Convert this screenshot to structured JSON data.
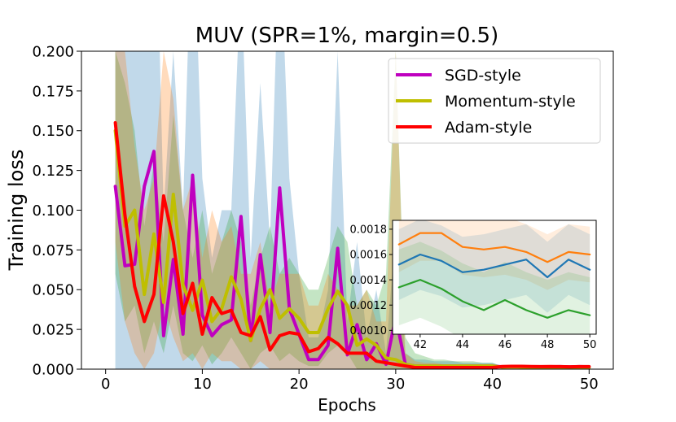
{
  "chart_data": [
    {
      "type": "line",
      "title": "MUV (SPR=1%, margin=0.5)",
      "xlabel": "Epochs",
      "ylabel": "Training loss",
      "xlim": [
        -2.5,
        52.5
      ],
      "ylim": [
        0.0,
        0.2
      ],
      "xticks": [
        0,
        10,
        20,
        30,
        40,
        50
      ],
      "xtick_labels": [
        "0",
        "10",
        "20",
        "30",
        "40",
        "50"
      ],
      "yticks": [
        0.0,
        0.025,
        0.05,
        0.075,
        0.1,
        0.125,
        0.15,
        0.175,
        0.2
      ],
      "ytick_labels": [
        "0.000",
        "0.025",
        "0.050",
        "0.075",
        "0.100",
        "0.125",
        "0.150",
        "0.175",
        "0.200"
      ],
      "grid": false,
      "legend_position": "top-right",
      "series": [
        {
          "name": "SGD-style",
          "color": "#bf00bf",
          "band_color": "#1f77b4",
          "x": [
            1,
            2,
            3,
            4,
            5,
            6,
            7,
            8,
            9,
            10,
            11,
            12,
            13,
            14,
            15,
            16,
            17,
            18,
            19,
            20,
            21,
            22,
            23,
            24,
            25,
            26,
            27,
            28,
            29,
            30,
            31,
            32,
            33,
            34,
            35,
            36,
            37,
            38,
            39,
            40,
            41,
            42,
            43,
            44,
            45,
            46,
            47,
            48,
            49,
            50
          ],
          "y": [
            0.115,
            0.065,
            0.066,
            0.115,
            0.137,
            0.021,
            0.069,
            0.022,
            0.122,
            0.034,
            0.021,
            0.028,
            0.031,
            0.096,
            0.018,
            0.072,
            0.023,
            0.114,
            0.038,
            0.022,
            0.006,
            0.006,
            0.015,
            0.076,
            0.009,
            0.028,
            0.006,
            0.016,
            0.003,
            0.033,
            0.003,
            0.002,
            0.002,
            0.002,
            0.002,
            0.002,
            0.002,
            0.002,
            0.002,
            0.002,
            0.0015,
            0.0016,
            0.0016,
            0.0015,
            0.0015,
            0.0015,
            0.0016,
            0.0014,
            0.0016,
            0.0015
          ],
          "lower": [
            0.0,
            0.0,
            0.0,
            0.0,
            0.0,
            0.0,
            0.0,
            0.0,
            0.0,
            0.0,
            0.0,
            0.0,
            0.0,
            0.0,
            0.0,
            0.0,
            0.0,
            0.0,
            0.0,
            0.0,
            0.0,
            0.0,
            0.0,
            0.0,
            0.0,
            0.0,
            0.0,
            0.0,
            0.0,
            0.0,
            0.0,
            0.0,
            0.0,
            0.0,
            0.0,
            0.0,
            0.0,
            0.0,
            0.0,
            0.0,
            0.001,
            0.0011,
            0.0011,
            0.001,
            0.001,
            0.001,
            0.0011,
            0.0009,
            0.0011,
            0.001
          ],
          "upper": [
            0.26,
            0.2,
            0.2,
            0.3,
            0.35,
            0.1,
            0.2,
            0.1,
            0.3,
            0.12,
            0.07,
            0.1,
            0.1,
            0.25,
            0.07,
            0.18,
            0.08,
            0.28,
            0.12,
            0.06,
            0.02,
            0.02,
            0.05,
            0.2,
            0.03,
            0.08,
            0.02,
            0.05,
            0.01,
            0.09,
            0.01,
            0.006,
            0.006,
            0.005,
            0.005,
            0.005,
            0.004,
            0.004,
            0.004,
            0.004,
            0.002,
            0.0021,
            0.0021,
            0.002,
            0.002,
            0.002,
            0.0021,
            0.0019,
            0.0021,
            0.002
          ]
        },
        {
          "name": "Momentum-style",
          "color": "#bfbf00",
          "band_color": "#2ca02c",
          "x": [
            1,
            2,
            3,
            4,
            5,
            6,
            7,
            8,
            9,
            10,
            11,
            12,
            13,
            14,
            15,
            16,
            17,
            18,
            19,
            20,
            21,
            22,
            23,
            24,
            25,
            26,
            27,
            28,
            29,
            30,
            31,
            32,
            33,
            34,
            35,
            36,
            37,
            38,
            39,
            40,
            41,
            42,
            43,
            44,
            45,
            46,
            47,
            48,
            49,
            50
          ],
          "y": [
            0.15,
            0.09,
            0.1,
            0.047,
            0.085,
            0.042,
            0.11,
            0.053,
            0.037,
            0.056,
            0.03,
            0.038,
            0.058,
            0.044,
            0.018,
            0.038,
            0.05,
            0.032,
            0.038,
            0.032,
            0.023,
            0.023,
            0.038,
            0.049,
            0.04,
            0.015,
            0.019,
            0.015,
            0.007,
            0.006,
            0.003,
            0.002,
            0.002,
            0.002,
            0.002,
            0.002,
            0.002,
            0.002,
            0.002,
            0.002,
            0.0013,
            0.0014,
            0.0013,
            0.0012,
            0.0012,
            0.0012,
            0.0012,
            0.0011,
            0.0012,
            0.0011
          ],
          "lower": [
            0.06,
            0.03,
            0.04,
            0.01,
            0.03,
            0.01,
            0.04,
            0.01,
            0.005,
            0.015,
            0.003,
            0.01,
            0.02,
            0.01,
            0.0,
            0.01,
            0.015,
            0.005,
            0.01,
            0.005,
            0.002,
            0.002,
            0.01,
            0.015,
            0.01,
            0.0,
            0.0,
            0.0,
            0.0,
            0.0,
            0.0,
            0.0,
            0.0,
            0.0,
            0.0,
            0.0,
            0.0,
            0.0,
            0.0,
            0.0,
            0.001,
            0.0011,
            0.001,
            0.0009,
            0.0009,
            0.001,
            0.0009,
            0.0008,
            0.0009,
            0.0008
          ],
          "upper": [
            0.2,
            0.18,
            0.15,
            0.09,
            0.13,
            0.08,
            0.16,
            0.1,
            0.07,
            0.1,
            0.06,
            0.08,
            0.1,
            0.08,
            0.04,
            0.07,
            0.09,
            0.06,
            0.07,
            0.06,
            0.05,
            0.05,
            0.07,
            0.09,
            0.08,
            0.04,
            0.05,
            0.04,
            0.06,
            0.2,
            0.02,
            0.01,
            0.008,
            0.006,
            0.006,
            0.005,
            0.005,
            0.005,
            0.004,
            0.004,
            0.0017,
            0.0018,
            0.0017,
            0.0016,
            0.0016,
            0.0016,
            0.0016,
            0.0015,
            0.0016,
            0.0015
          ]
        },
        {
          "name": "Adam-style",
          "color": "#ff0000",
          "band_color": "#ff7f0e",
          "x": [
            1,
            2,
            3,
            4,
            5,
            6,
            7,
            8,
            9,
            10,
            11,
            12,
            13,
            14,
            15,
            16,
            17,
            18,
            19,
            20,
            21,
            22,
            23,
            24,
            25,
            26,
            27,
            28,
            29,
            30,
            31,
            32,
            33,
            34,
            35,
            36,
            37,
            38,
            39,
            40,
            41,
            42,
            43,
            44,
            45,
            46,
            47,
            48,
            49,
            50
          ],
          "y": [
            0.155,
            0.097,
            0.052,
            0.03,
            0.047,
            0.109,
            0.08,
            0.035,
            0.054,
            0.022,
            0.045,
            0.035,
            0.037,
            0.023,
            0.021,
            0.033,
            0.012,
            0.021,
            0.023,
            0.022,
            0.011,
            0.013,
            0.02,
            0.016,
            0.01,
            0.01,
            0.01,
            0.005,
            0.004,
            0.003,
            0.002,
            0.001,
            0.001,
            0.001,
            0.001,
            0.001,
            0.001,
            0.001,
            0.001,
            0.001,
            0.0017,
            0.0018,
            0.0018,
            0.0017,
            0.0016,
            0.0017,
            0.0016,
            0.0015,
            0.0016,
            0.0016
          ],
          "lower": [
            0.08,
            0.03,
            0.01,
            0.0,
            0.01,
            0.04,
            0.02,
            0.005,
            0.01,
            0.0,
            0.01,
            0.005,
            0.005,
            0.0,
            0.0,
            0.005,
            0.0,
            0.0,
            0.0,
            0.0,
            0.0,
            0.0,
            0.0,
            0.0,
            0.0,
            0.0,
            0.0,
            0.0,
            0.0,
            0.0,
            0.0,
            0.0,
            0.0,
            0.0,
            0.0,
            0.0,
            0.0,
            0.0,
            0.0,
            0.0,
            0.0014,
            0.0015,
            0.0015,
            0.0014,
            0.0013,
            0.0014,
            0.0013,
            0.0012,
            0.0013,
            0.0013
          ],
          "upper": [
            0.2,
            0.2,
            0.14,
            0.1,
            0.12,
            0.2,
            0.17,
            0.1,
            0.12,
            0.07,
            0.1,
            0.08,
            0.09,
            0.06,
            0.06,
            0.08,
            0.04,
            0.06,
            0.06,
            0.06,
            0.04,
            0.04,
            0.06,
            0.05,
            0.04,
            0.04,
            0.05,
            0.03,
            0.03,
            0.2,
            0.01,
            0.005,
            0.004,
            0.004,
            0.003,
            0.003,
            0.003,
            0.003,
            0.003,
            0.003,
            0.002,
            0.0021,
            0.0021,
            0.002,
            0.0019,
            0.002,
            0.0019,
            0.0018,
            0.0019,
            0.0019
          ]
        }
      ]
    },
    {
      "type": "line",
      "title": "",
      "xlim": [
        40.7,
        50.3
      ],
      "ylim": [
        0.00097,
        0.00187
      ],
      "xticks": [
        42,
        44,
        46,
        48,
        50
      ],
      "xtick_labels": [
        "42",
        "44",
        "46",
        "48",
        "50"
      ],
      "yticks": [
        0.001,
        0.0012,
        0.0014,
        0.0016,
        0.0018
      ],
      "ytick_labels": [
        "0.0010",
        "0.0012",
        "0.0014",
        "0.0016",
        "0.0018"
      ],
      "grid": false,
      "series": [
        {
          "color": "#ff7f0e",
          "x": [
            41,
            42,
            43,
            44,
            45,
            46,
            47,
            48,
            49,
            50
          ],
          "y": [
            0.00168,
            0.00177,
            0.00177,
            0.00166,
            0.00164,
            0.00166,
            0.00162,
            0.00154,
            0.00162,
            0.0016
          ],
          "lower": [
            0.00146,
            0.00155,
            0.00155,
            0.00144,
            0.00142,
            0.00144,
            0.0014,
            0.00132,
            0.0014,
            0.00138
          ],
          "upper": [
            0.0019,
            0.0019,
            0.0019,
            0.0019,
            0.0019,
            0.0019,
            0.00184,
            0.00176,
            0.00184,
            0.00182
          ]
        },
        {
          "color": "#1f77b4",
          "x": [
            41,
            42,
            43,
            44,
            45,
            46,
            47,
            48,
            49,
            50
          ],
          "y": [
            0.00152,
            0.0016,
            0.00155,
            0.00146,
            0.00148,
            0.00152,
            0.00156,
            0.00142,
            0.00156,
            0.00148
          ],
          "lower": [
            0.00124,
            0.00132,
            0.00127,
            0.00118,
            0.0012,
            0.00124,
            0.00128,
            0.00114,
            0.00128,
            0.0012
          ],
          "upper": [
            0.0018,
            0.00188,
            0.00183,
            0.00174,
            0.00176,
            0.0018,
            0.00184,
            0.0017,
            0.00184,
            0.00176
          ]
        },
        {
          "color": "#2ca02c",
          "x": [
            41,
            42,
            43,
            44,
            45,
            46,
            47,
            48,
            49,
            50
          ],
          "y": [
            0.00134,
            0.0014,
            0.00133,
            0.00123,
            0.00116,
            0.00124,
            0.00116,
            0.0011,
            0.00116,
            0.00112
          ],
          "lower": [
            0.00104,
            0.0011,
            0.00103,
            0.00093,
            0.00086,
            0.00094,
            0.00086,
            0.0008,
            0.00086,
            0.00082
          ],
          "upper": [
            0.00164,
            0.0017,
            0.00163,
            0.00153,
            0.00146,
            0.00154,
            0.00146,
            0.0014,
            0.00146,
            0.00142
          ]
        }
      ]
    }
  ]
}
